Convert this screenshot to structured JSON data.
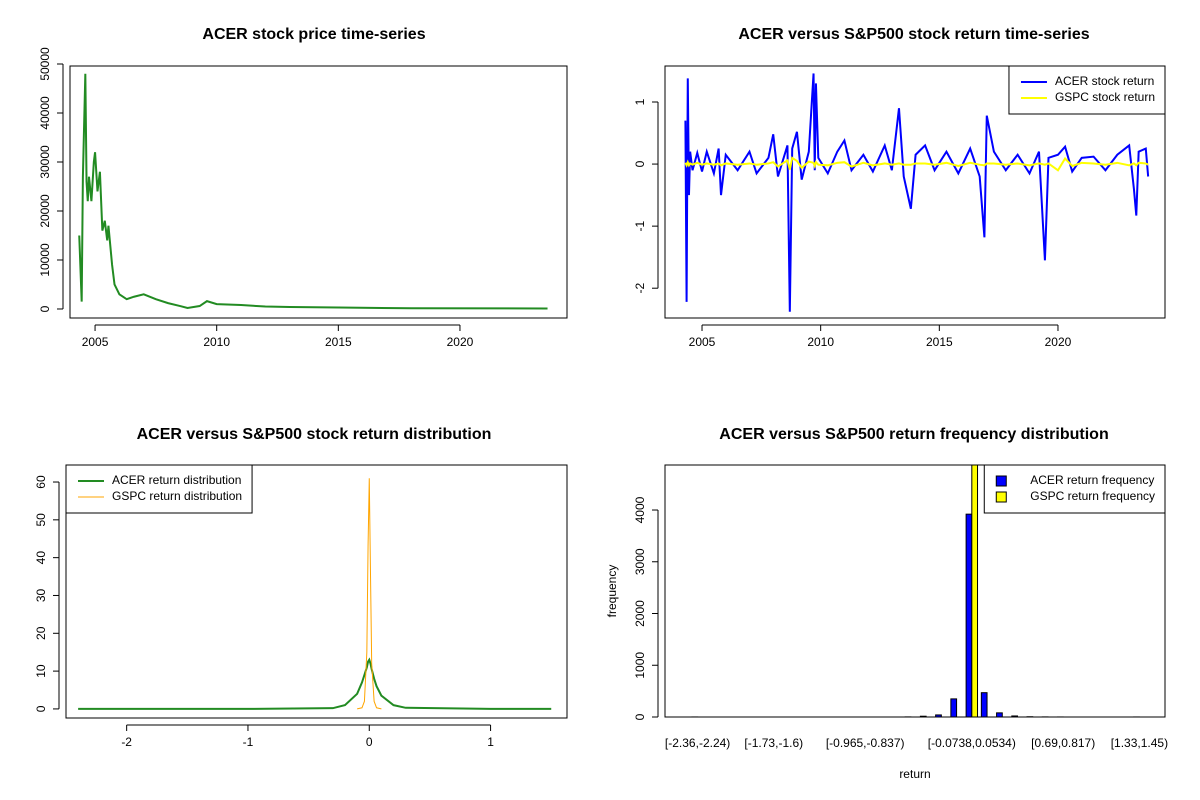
{
  "chart_data": [
    {
      "type": "line",
      "title": "ACER stock price time-series",
      "color": "#228b22",
      "x": [
        2004.35,
        2004.45,
        2004.5,
        2004.6,
        2004.65,
        2004.7,
        2004.75,
        2004.85,
        2004.95,
        2005.0,
        2005.1,
        2005.2,
        2005.3,
        2005.4,
        2005.5,
        2005.55,
        2005.7,
        2005.8,
        2006.0,
        2006.3,
        2006.6,
        2007.0,
        2007.5,
        2008.0,
        2008.5,
        2008.8,
        2009.3,
        2009.6,
        2010.0,
        2011.0,
        2012.0,
        2013.0,
        2015.0,
        2018.0,
        2023.6
      ],
      "values": [
        15000,
        1500,
        27000,
        48000,
        26000,
        22000,
        27000,
        22000,
        30000,
        32000,
        24000,
        28000,
        16000,
        18000,
        14000,
        17000,
        9000,
        5000,
        3000,
        2000,
        2500,
        3000,
        2000,
        1200,
        600,
        200,
        600,
        1600,
        1000,
        800,
        500,
        400,
        300,
        150,
        100
      ],
      "xlim": [
        2003.97,
        2024.4
      ],
      "xticks": [
        2005,
        2010,
        2015,
        2020
      ],
      "ylim": [
        -1840,
        49590
      ],
      "yticks": [
        0,
        10000,
        20000,
        30000,
        40000,
        50000
      ]
    },
    {
      "type": "line",
      "title": "ACER versus S&P500 stock return time-series",
      "legend": "topright",
      "x": [
        2004.3,
        2004.35,
        2004.4,
        2004.45,
        2004.5,
        2004.6,
        2004.8,
        2005.0,
        2005.2,
        2005.5,
        2005.7,
        2005.8,
        2006.0,
        2006.5,
        2007.0,
        2007.3,
        2007.8,
        2008.0,
        2008.2,
        2008.6,
        2008.7,
        2008.8,
        2009.0,
        2009.2,
        2009.5,
        2009.7,
        2009.75,
        2009.8,
        2009.9,
        2010.3,
        2010.7,
        2011.0,
        2011.3,
        2011.8,
        2012.2,
        2012.7,
        2013.0,
        2013.3,
        2013.5,
        2013.8,
        2014.0,
        2014.4,
        2014.8,
        2015.3,
        2015.8,
        2016.3,
        2016.7,
        2016.9,
        2017.0,
        2017.3,
        2017.8,
        2018.3,
        2018.8,
        2019.2,
        2019.45,
        2019.6,
        2020.0,
        2020.3,
        2020.6,
        2021.0,
        2021.5,
        2022.0,
        2022.5,
        2023.0,
        2023.2,
        2023.3,
        2023.4,
        2023.7,
        2023.8
      ],
      "series": [
        {
          "name": "ACER stock return",
          "color": "#0000ff",
          "width": 2,
          "values": [
            0.7,
            -2.22,
            1.38,
            -0.5,
            0.2,
            -0.1,
            0.18,
            -0.12,
            0.2,
            -0.15,
            0.25,
            -0.5,
            0.15,
            -0.1,
            0.2,
            -0.15,
            0.1,
            0.48,
            -0.2,
            0.3,
            -2.38,
            0.25,
            0.52,
            -0.25,
            0.2,
            1.46,
            -0.1,
            1.3,
            0.1,
            -0.15,
            0.2,
            0.38,
            -0.1,
            0.15,
            -0.12,
            0.3,
            -0.1,
            0.9,
            -0.2,
            -0.72,
            0.15,
            0.3,
            -0.1,
            0.2,
            -0.15,
            0.25,
            -0.2,
            -1.18,
            0.78,
            0.2,
            -0.1,
            0.15,
            -0.15,
            0.2,
            -1.55,
            0.1,
            0.15,
            0.28,
            -0.12,
            0.1,
            0.12,
            -0.1,
            0.15,
            0.3,
            -0.4,
            -0.83,
            0.2,
            0.25,
            -0.2
          ]
        },
        {
          "name": "GSPC stock return",
          "color": "#ffff00",
          "width": 2,
          "values": [
            0.02,
            -0.02,
            0.03,
            -0.02,
            0.01,
            -0.01,
            0.02,
            -0.01,
            0.01,
            -0.01,
            0.01,
            -0.02,
            0.01,
            -0.01,
            0.01,
            -0.01,
            0.01,
            0.03,
            -0.04,
            0.06,
            -0.09,
            0.1,
            0.05,
            -0.06,
            0.04,
            0.02,
            -0.03,
            0.03,
            -0.01,
            -0.02,
            0.02,
            0.03,
            -0.04,
            0.02,
            -0.02,
            0.01,
            -0.01,
            0.01,
            -0.01,
            -0.01,
            0.01,
            0.01,
            -0.01,
            0.02,
            -0.03,
            0.02,
            -0.01,
            -0.02,
            0.01,
            0.01,
            -0.01,
            0.01,
            -0.02,
            0.01,
            -0.01,
            0.01,
            -0.1,
            0.09,
            -0.03,
            0.02,
            0.01,
            -0.01,
            0.02,
            -0.02,
            0.01,
            -0.02,
            0.02,
            0.01,
            -0.01
          ]
        }
      ],
      "xlim": [
        2003.44,
        2024.51
      ],
      "xticks": [
        2005,
        2010,
        2015,
        2020
      ],
      "ylim": [
        -2.48,
        1.58
      ],
      "yticks": [
        -2,
        -1,
        0,
        1
      ]
    },
    {
      "type": "line",
      "title": "ACER versus S&P500 stock return distribution",
      "legend": "topleft",
      "x": [
        -2.4,
        -1.0,
        -0.3,
        -0.2,
        -0.1,
        -0.06,
        -0.04,
        -0.02,
        -0.01,
        0,
        0.01,
        0.02,
        0.04,
        0.06,
        0.1,
        0.2,
        0.3,
        1.0,
        1.5
      ],
      "series": [
        {
          "name": "ACER return distribution",
          "color": "#228b22",
          "width": 2,
          "values": [
            0,
            0,
            0.2,
            1,
            4,
            7,
            9,
            11,
            12.5,
            13,
            12,
            10.5,
            8,
            6,
            3.5,
            1,
            0.3,
            0,
            0
          ]
        },
        {
          "name": "GSPC return distribution",
          "color": "#ffa500",
          "width": 1,
          "values": [
            null,
            null,
            null,
            null,
            0,
            0.3,
            2,
            15,
            43,
            61,
            36,
            12,
            2,
            0.3,
            0,
            null,
            null,
            null,
            null
          ]
        }
      ],
      "xlim": [
        -2.5,
        1.63
      ],
      "xticks": [
        -2,
        -1,
        0,
        1
      ],
      "ylim": [
        -2.4,
        64.5
      ],
      "yticks": [
        0,
        10,
        20,
        30,
        40,
        50,
        60
      ]
    },
    {
      "type": "bar",
      "title": "ACER versus S&P500 return frequency distribution",
      "legend": "topright",
      "xlabel": "return",
      "ylabel": "frequency",
      "categories": [
        "[-2.36,-2.24)",
        null,
        null,
        null,
        null,
        "[-1.73,-1.6)",
        null,
        null,
        null,
        null,
        null,
        "[-0.965,-0.837)",
        null,
        null,
        null,
        null,
        null,
        null,
        "[-0.0738,0.0534)",
        null,
        null,
        null,
        null,
        null,
        "[0.69,0.817)",
        null,
        null,
        null,
        null,
        "[1.33,1.45)"
      ],
      "series": [
        {
          "name": "ACER return frequency",
          "color": "#0000ff",
          "values": [
            1,
            0,
            0,
            0,
            0,
            0,
            0,
            0,
            0,
            0,
            0,
            0,
            0,
            0,
            2,
            15,
            40,
            350,
            3920,
            470,
            80,
            20,
            5,
            2,
            1,
            0,
            0,
            0,
            0,
            1
          ]
        },
        {
          "name": "GSPC return frequency",
          "color": "#ffff00",
          "values": [
            0,
            0,
            0,
            0,
            0,
            0,
            0,
            0,
            0,
            0,
            0,
            0,
            0,
            0,
            0,
            0,
            0,
            0,
            4900,
            0,
            0,
            0,
            0,
            0,
            0,
            0,
            0,
            0,
            0,
            0
          ]
        }
      ],
      "ylim": [
        0,
        4870
      ],
      "yticks": [
        0,
        1000,
        2000,
        3000,
        4000
      ]
    }
  ]
}
